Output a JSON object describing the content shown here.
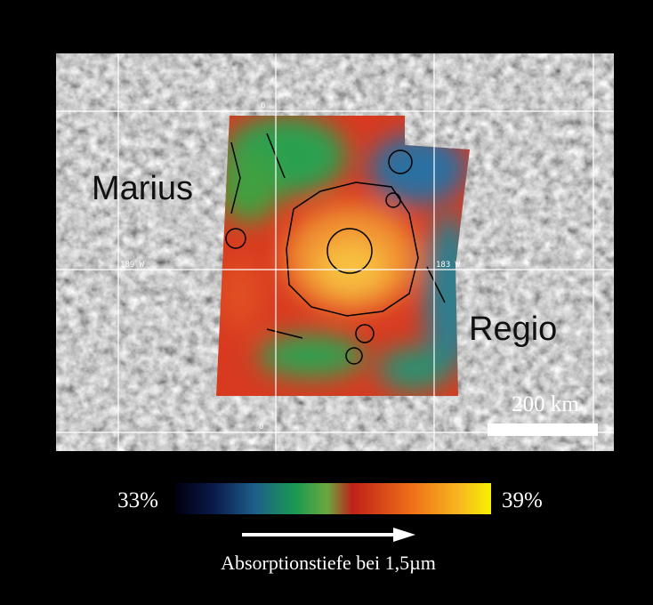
{
  "map": {
    "labels": {
      "region_left": "Marius",
      "region_right": "Regio"
    },
    "grid_labels": {
      "lat_top": "6",
      "lat_bottom": "0",
      "lon_left": "189 W",
      "lon_right": "183 W"
    },
    "scale_bar": {
      "label": "200 km"
    },
    "colorbar": {
      "min_label": "33%",
      "max_label": "39%",
      "title": "Absorptionstiefe bei 1,5µm"
    }
  }
}
